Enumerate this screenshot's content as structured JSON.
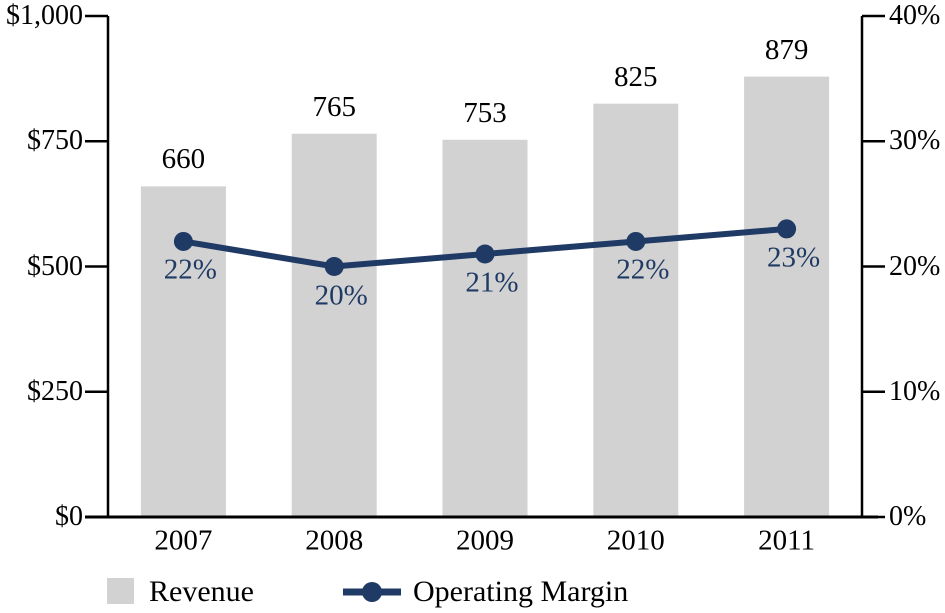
{
  "chart_data": {
    "type": "bar+line",
    "categories": [
      "2007",
      "2008",
      "2009",
      "2010",
      "2011"
    ],
    "series": [
      {
        "name": "Revenue",
        "type": "bar",
        "axis": "left",
        "values": [
          660,
          765,
          753,
          825,
          879
        ],
        "labels": [
          "660",
          "765",
          "753",
          "825",
          "879"
        ]
      },
      {
        "name": "Operating Margin",
        "type": "line",
        "axis": "right",
        "values": [
          22,
          20,
          21,
          22,
          23
        ],
        "labels": [
          "22%",
          "20%",
          "21%",
          "22%",
          "23%"
        ]
      }
    ],
    "left_axis": {
      "min": 0,
      "max": 1000,
      "ticks": [
        "$0",
        "$250",
        "$500",
        "$750",
        "$1,000"
      ]
    },
    "right_axis": {
      "min": 0,
      "max": 40,
      "ticks": [
        "0%",
        "10%",
        "20%",
        "30%",
        "40%"
      ]
    },
    "grid": false,
    "legend_position": "bottom",
    "legend": [
      {
        "label": "Revenue",
        "marker": "square"
      },
      {
        "label": "Operating Margin",
        "marker": "line-dot"
      }
    ]
  },
  "colors": {
    "bar": "#d2d2d2",
    "line": "#1f3a64",
    "axis": "#000000",
    "text": "#000000",
    "percent_label": "#1f3a64",
    "background": "#ffffff"
  }
}
